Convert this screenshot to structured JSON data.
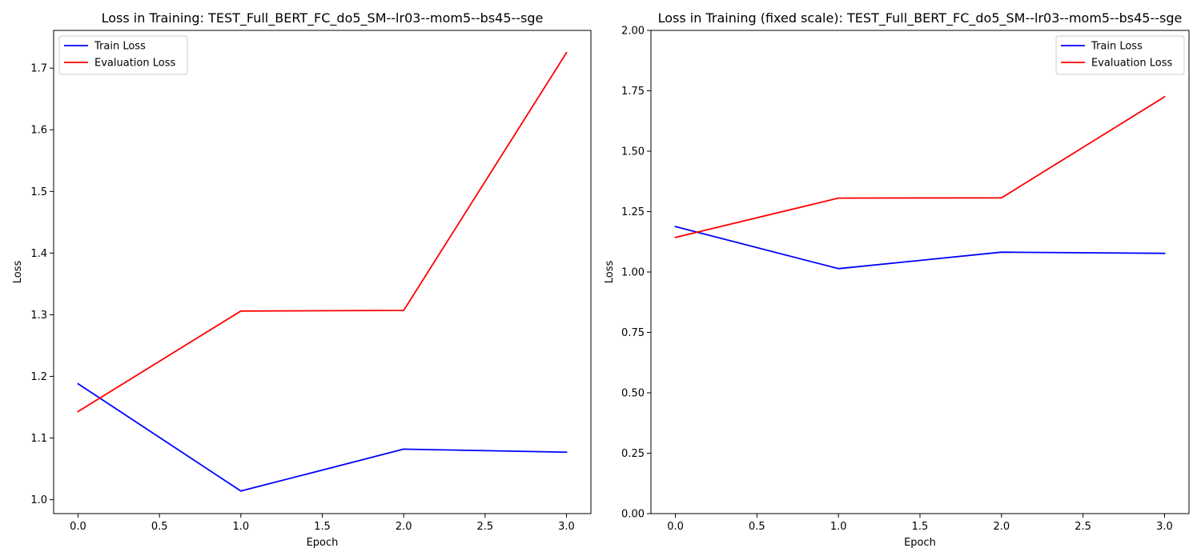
{
  "chart_data": [
    {
      "type": "line",
      "title": "Loss in Training: TEST_Full_BERT_FC_do5_SM--lr03--mom5--bs45--sge",
      "xlabel": "Epoch",
      "ylabel": "Loss",
      "x": [
        0,
        1,
        2,
        3
      ],
      "xlim": [
        -0.15,
        3.15
      ],
      "ylim": [
        0.9774,
        1.7612
      ],
      "xticks": [
        0.0,
        0.5,
        1.0,
        1.5,
        2.0,
        2.5,
        3.0
      ],
      "xtick_labels": [
        "0.0",
        "0.5",
        "1.0",
        "1.5",
        "2.0",
        "2.5",
        "3.0"
      ],
      "yticks": [
        1.0,
        1.1,
        1.2,
        1.3,
        1.4,
        1.5,
        1.6,
        1.7
      ],
      "ytick_labels": [
        "1.0",
        "1.1",
        "1.2",
        "1.3",
        "1.4",
        "1.5",
        "1.6",
        "1.7"
      ],
      "grid": false,
      "legend_position": "top-left",
      "series": [
        {
          "name": "Train Loss",
          "color": "#0000ff",
          "values": [
            1.188,
            1.014,
            1.082,
            1.077
          ]
        },
        {
          "name": "Evaluation Loss",
          "color": "#ff0000",
          "values": [
            1.143,
            1.306,
            1.307,
            1.725
          ]
        }
      ]
    },
    {
      "type": "line",
      "title": "Loss in Training (fixed scale): TEST_Full_BERT_FC_do5_SM--lr03--mom5--bs45--sge",
      "xlabel": "Epoch",
      "ylabel": "Loss",
      "x": [
        0,
        1,
        2,
        3
      ],
      "xlim": [
        -0.15,
        3.15
      ],
      "ylim": [
        0.0,
        2.0
      ],
      "xticks": [
        0.0,
        0.5,
        1.0,
        1.5,
        2.0,
        2.5,
        3.0
      ],
      "xtick_labels": [
        "0.0",
        "0.5",
        "1.0",
        "1.5",
        "2.0",
        "2.5",
        "3.0"
      ],
      "yticks": [
        0.0,
        0.25,
        0.5,
        0.75,
        1.0,
        1.25,
        1.5,
        1.75,
        2.0
      ],
      "ytick_labels": [
        "0.00",
        "0.25",
        "0.50",
        "0.75",
        "1.00",
        "1.25",
        "1.50",
        "1.75",
        "2.00"
      ],
      "grid": false,
      "legend_position": "top-right",
      "series": [
        {
          "name": "Train Loss",
          "color": "#0000ff",
          "values": [
            1.188,
            1.014,
            1.082,
            1.077
          ]
        },
        {
          "name": "Evaluation Loss",
          "color": "#ff0000",
          "values": [
            1.143,
            1.306,
            1.307,
            1.725
          ]
        }
      ]
    }
  ]
}
